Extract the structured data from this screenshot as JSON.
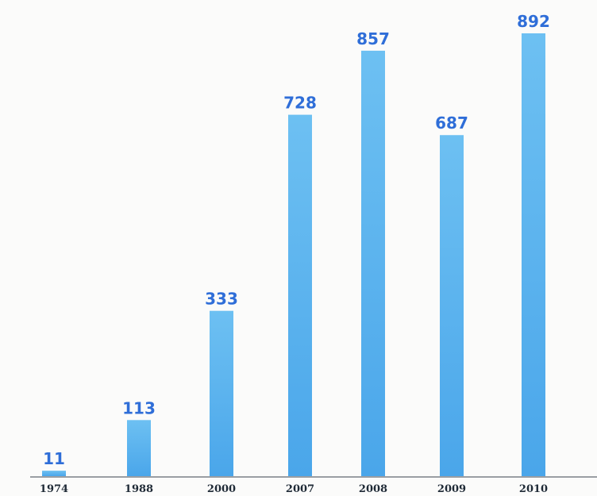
{
  "chart_data": {
    "type": "bar",
    "categories": [
      "1974",
      "1988",
      "2000",
      "2007",
      "2008",
      "2009",
      "2010"
    ],
    "values": [
      11,
      113,
      333,
      728,
      857,
      687,
      892
    ],
    "data_labels": [
      "11",
      "113",
      "333",
      "728",
      "857",
      "687",
      "892"
    ],
    "title": "",
    "xlabel": "",
    "ylabel": "",
    "ylim": [
      0,
      1000
    ],
    "grid": false,
    "legend": "none"
  },
  "colors": {
    "bar_fill": "#4aa6ea",
    "bar_fill_light": "#6dc0f2",
    "label": "#2f6ed8",
    "axis": "#7b7f86",
    "background": "#fbfbfa"
  }
}
